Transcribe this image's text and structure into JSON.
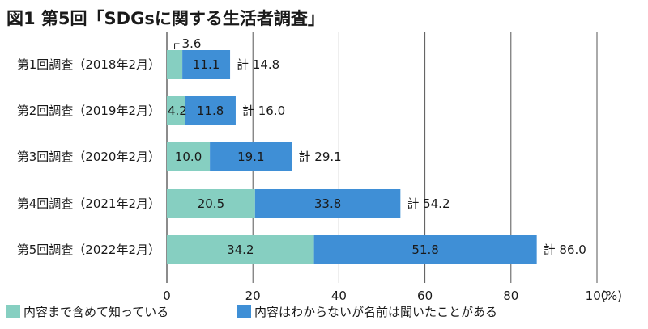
{
  "chart_data": {
    "type": "bar",
    "orientation": "horizontal",
    "stacked": true,
    "title": "図1 第5回「SDGsに関する生活者調査」",
    "categories": [
      "第1回調査（2018年2月）",
      "第2回調査（2019年2月）",
      "第3回調査（2020年2月）",
      "第4回調査（2021年2月）",
      "第5回調査（2022年2月）"
    ],
    "series": [
      {
        "name": "内容まで含めて知っている",
        "color": "#86cfc1",
        "values": [
          3.6,
          4.2,
          10.0,
          20.5,
          34.2
        ],
        "labels": [
          "3.6",
          "4.2",
          "10.0",
          "20.5",
          "34.2"
        ]
      },
      {
        "name": "内容はわからないが名前は聞いたことがある",
        "color": "#3f8fd6",
        "values": [
          11.1,
          11.8,
          19.1,
          33.8,
          51.8
        ],
        "labels": [
          "11.1",
          "11.8",
          "19.1",
          "33.8",
          "51.8"
        ]
      }
    ],
    "totals": [
      "計 14.8",
      "計 16.0",
      "計 29.1",
      "計 54.2",
      "計 86.0"
    ],
    "xlim": [
      0,
      100
    ],
    "xticks": [
      "0",
      "20",
      "40",
      "60",
      "80",
      "100"
    ],
    "unit": "(%)",
    "grid": true,
    "legend_position": "bottom-left"
  }
}
